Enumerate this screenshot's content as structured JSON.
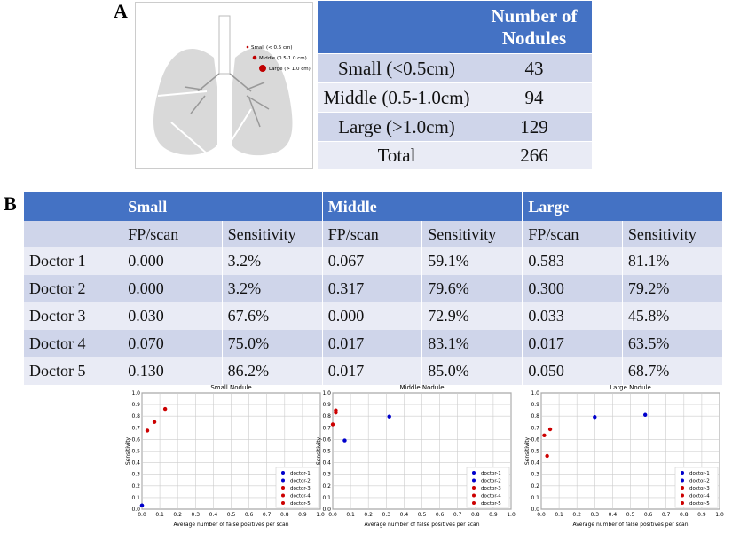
{
  "panel_a": {
    "label": "A",
    "legend": [
      {
        "label": "Small (< 0.5 cm)"
      },
      {
        "label": "Middle (0.5-1.0 cm)"
      },
      {
        "label": "Large (> 1.0 cm)"
      }
    ],
    "table": {
      "header": [
        "",
        "Number of Nodules"
      ],
      "rows": [
        [
          "Small (<0.5cm)",
          "43"
        ],
        [
          "Middle (0.5-1.0cm)",
          "94"
        ],
        [
          "Large (>1.0cm)",
          "129"
        ],
        [
          "Total",
          "266"
        ]
      ]
    }
  },
  "panel_b": {
    "label": "B",
    "groups": [
      "Small",
      "Middle",
      "Large"
    ],
    "subheaders": [
      "FP/scan",
      "Sensitivity",
      "FP/scan",
      "Sensitivity",
      "FP/scan",
      "Sensitivity"
    ],
    "rows": [
      [
        "Doctor 1",
        "0.000",
        "3.2%",
        "0.067",
        "59.1%",
        "0.583",
        "81.1%"
      ],
      [
        "Doctor 2",
        "0.000",
        "3.2%",
        "0.317",
        "79.6%",
        "0.300",
        "79.2%"
      ],
      [
        "Doctor 3",
        "0.030",
        "67.6%",
        "0.000",
        "72.9%",
        "0.033",
        "45.8%"
      ],
      [
        "Doctor 4",
        "0.070",
        "75.0%",
        "0.017",
        "83.1%",
        "0.017",
        "63.5%"
      ],
      [
        "Doctor 5",
        "0.130",
        "86.2%",
        "0.017",
        "85.0%",
        "0.050",
        "68.7%"
      ]
    ]
  },
  "colors": {
    "header": "#4472C4",
    "row_dark": "#CFD5EA",
    "row_light": "#E9EBF5",
    "doctor_blue": "#0000CC",
    "doctor_red": "#CC0000",
    "nodule": "#C00000"
  },
  "chart_data": [
    {
      "type": "scatter",
      "title": "Small Nodule",
      "xlabel": "Average number of false positives per scan",
      "ylabel": "Sensitivity",
      "xlim": [
        0,
        1
      ],
      "ylim": [
        0,
        1
      ],
      "grid": true,
      "legend": "bottom-right",
      "ticks": [
        "0.0",
        "0.1",
        "0.2",
        "0.3",
        "0.4",
        "0.5",
        "0.6",
        "0.7",
        "0.8",
        "0.9",
        "1.0"
      ],
      "series": [
        {
          "name": "doctor-1",
          "color": "#0000CC",
          "x": 0.0,
          "y": 0.032
        },
        {
          "name": "doctor-2",
          "color": "#0000CC",
          "x": 0.0,
          "y": 0.032
        },
        {
          "name": "doctor-3",
          "color": "#CC0000",
          "x": 0.03,
          "y": 0.676
        },
        {
          "name": "doctor-4",
          "color": "#CC0000",
          "x": 0.07,
          "y": 0.75
        },
        {
          "name": "doctor-5",
          "color": "#CC0000",
          "x": 0.13,
          "y": 0.862
        }
      ]
    },
    {
      "type": "scatter",
      "title": "Middle Nodule",
      "xlabel": "Average number of false positives per scan",
      "ylabel": "Sensitivity",
      "xlim": [
        0,
        1
      ],
      "ylim": [
        0,
        1
      ],
      "grid": true,
      "legend": "bottom-right",
      "ticks": [
        "0.0",
        "0.1",
        "0.2",
        "0.3",
        "0.4",
        "0.5",
        "0.6",
        "0.7",
        "0.8",
        "0.9",
        "1.0"
      ],
      "series": [
        {
          "name": "doctor-1",
          "color": "#0000CC",
          "x": 0.067,
          "y": 0.591
        },
        {
          "name": "doctor-2",
          "color": "#0000CC",
          "x": 0.317,
          "y": 0.796
        },
        {
          "name": "doctor-3",
          "color": "#CC0000",
          "x": 0.0,
          "y": 0.729
        },
        {
          "name": "doctor-4",
          "color": "#CC0000",
          "x": 0.017,
          "y": 0.831
        },
        {
          "name": "doctor-5",
          "color": "#CC0000",
          "x": 0.017,
          "y": 0.85
        }
      ]
    },
    {
      "type": "scatter",
      "title": "Large Nodule",
      "xlabel": "Average number of false positives per scan",
      "ylabel": "Sensitivity",
      "xlim": [
        0,
        1
      ],
      "ylim": [
        0,
        1
      ],
      "grid": true,
      "legend": "bottom-right",
      "ticks": [
        "0.0",
        "0.1",
        "0.2",
        "0.3",
        "0.4",
        "0.5",
        "0.6",
        "0.7",
        "0.8",
        "0.9",
        "1.0"
      ],
      "series": [
        {
          "name": "doctor-1",
          "color": "#0000CC",
          "x": 0.583,
          "y": 0.811
        },
        {
          "name": "doctor-2",
          "color": "#0000CC",
          "x": 0.3,
          "y": 0.792
        },
        {
          "name": "doctor-3",
          "color": "#CC0000",
          "x": 0.033,
          "y": 0.458
        },
        {
          "name": "doctor-4",
          "color": "#CC0000",
          "x": 0.017,
          "y": 0.635
        },
        {
          "name": "doctor-5",
          "color": "#CC0000",
          "x": 0.05,
          "y": 0.687
        }
      ]
    }
  ]
}
